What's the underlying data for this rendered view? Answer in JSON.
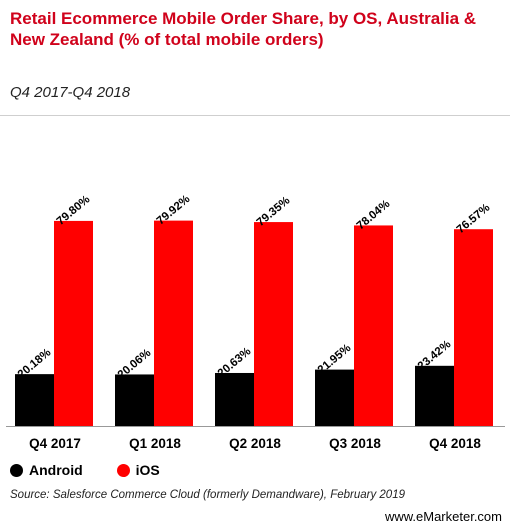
{
  "header": {
    "title": "Retail Ecommerce Mobile Order Share, by OS, Australia & New Zealand (% of total mobile orders)",
    "subtitle": "Q4 2017-Q4 2018"
  },
  "chart_data": {
    "type": "bar",
    "title": "Retail Ecommerce Mobile Order Share, by OS, Australia & New Zealand (% of total mobile orders)",
    "subtitle": "Q4 2017-Q4 2018",
    "categories": [
      "Q4 2017",
      "Q1 2018",
      "Q2 2018",
      "Q3 2018",
      "Q4 2018"
    ],
    "series": [
      {
        "name": "Android",
        "color": "#000000",
        "values": [
          20.18,
          20.06,
          20.63,
          21.95,
          23.42
        ],
        "labels": [
          "20.18%",
          "20.06%",
          "20.63%",
          "21.95%",
          "23.42%"
        ]
      },
      {
        "name": "iOS",
        "color": "#ff0000",
        "values": [
          79.8,
          79.92,
          79.35,
          78.04,
          76.57
        ],
        "labels": [
          "79.80%",
          "79.92%",
          "79.35%",
          "78.04%",
          "76.57%"
        ]
      }
    ],
    "ylim": [
      0,
      100
    ],
    "grid": false,
    "legend_position": "bottom-left"
  },
  "legend": {
    "items": [
      {
        "label": "Android",
        "color": "#000000"
      },
      {
        "label": "iOS",
        "color": "#ff0000"
      }
    ]
  },
  "footer": {
    "source": "Source: Salesforce Commerce Cloud (formerly Demandware), February 2019",
    "brand": "www.eMarketer.com"
  }
}
